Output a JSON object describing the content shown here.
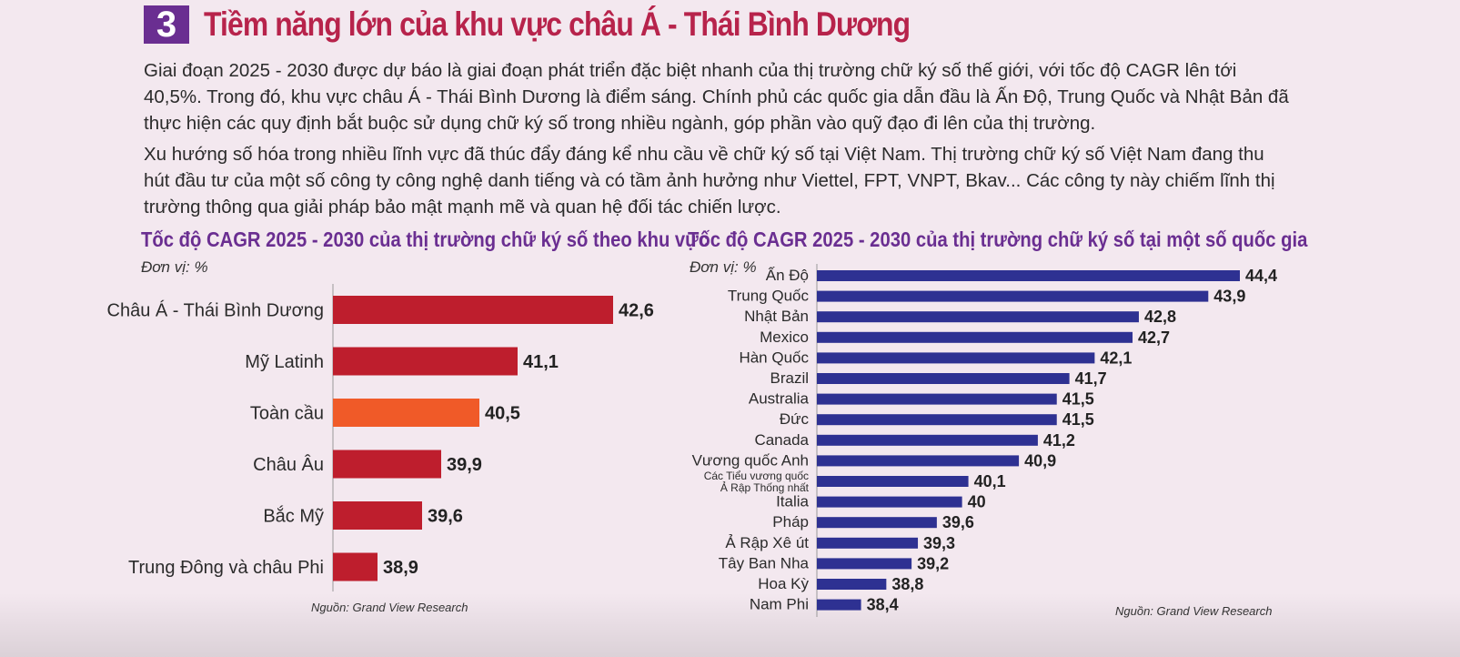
{
  "header": {
    "number": "3",
    "title": "Tiềm năng lớn của khu vực châu Á - Thái Bình Dương"
  },
  "body": {
    "para1": "Giai đoạn 2025 - 2030 được dự báo là giai đoạn phát triển đặc biệt nhanh của thị trường chữ ký số thế giới, với tốc độ CAGR lên tới 40,5%. Trong đó, khu vực châu Á - Thái Bình Dương là điểm sáng. Chính phủ các quốc gia dẫn đầu là Ấn Độ, Trung Quốc và Nhật Bản đã thực hiện các quy định bắt buộc sử dụng chữ ký số trong nhiều ngành, góp phần vào quỹ đạo đi lên của thị trường.",
    "para2": "Xu hướng số hóa trong nhiều lĩnh vực đã thúc đẩy đáng kể nhu cầu về chữ ký số tại Việt Nam. Thị trường chữ ký số Việt Nam đang thu hút đầu tư của một số công ty công nghệ danh tiếng và có tầm ảnh hưởng như Viettel, FPT, VNPT, Bkav... Các công ty này chiếm lĩnh thị trường thông qua giải pháp bảo mật mạnh mẽ và quan hệ đối tác chiến lược."
  },
  "colors": {
    "title": "#b7234b",
    "badge": "#6a2e91",
    "chart_title": "#6a2e91",
    "bar_region": "#be1e2d",
    "bar_highlight": "#f05a28",
    "bar_country": "#2e3192",
    "background": "#f3e8ef"
  },
  "chart_data": [
    {
      "type": "bar",
      "orientation": "horizontal",
      "title": "Tốc độ CAGR 2025 - 2030 của thị trường chữ ký số theo khu vực",
      "unit": "Đơn vị: %",
      "source": "Nguồn: Grand View Research",
      "categories": [
        "Châu Á - Thái Bình Dương",
        "Mỹ Latinh",
        "Toàn cầu",
        "Châu Âu",
        "Bắc Mỹ",
        "Trung Đông và châu Phi"
      ],
      "values": [
        42.6,
        41.1,
        40.5,
        39.9,
        39.6,
        38.9
      ],
      "value_labels": [
        "42,6",
        "41,1",
        "40,5",
        "39,9",
        "39,6",
        "38,9"
      ],
      "highlight": "Toàn cầu",
      "xlim": [
        38.2,
        42.6
      ]
    },
    {
      "type": "bar",
      "orientation": "horizontal",
      "title": "Tốc độ CAGR 2025 - 2030 của thị trường chữ ký số tại một số quốc gia",
      "unit": "Đơn vị: %",
      "source": "Nguồn: Grand View Research",
      "categories": [
        "Ấn Độ",
        "Trung Quốc",
        "Nhật Bản",
        "Mexico",
        "Hàn Quốc",
        "Brazil",
        "Australia",
        "Đức",
        "Canada",
        "Vương quốc Anh",
        "Các Tiểu vương quốc|Ả Rập Thống  nhất",
        "Italia",
        "Pháp",
        "Ả Rập Xê út",
        "Tây Ban Nha",
        "Hoa Kỳ",
        "Nam Phi"
      ],
      "values": [
        44.4,
        43.9,
        42.8,
        42.7,
        42.1,
        41.7,
        41.5,
        41.5,
        41.2,
        40.9,
        40.1,
        40,
        39.6,
        39.3,
        39.2,
        38.8,
        38.4
      ],
      "value_labels": [
        "44,4",
        "43,9",
        "42,8",
        "42,7",
        "42,1",
        "41,7",
        "41,5",
        "41,5",
        "41,2",
        "40,9",
        "40,1",
        "40",
        "39,6",
        "39,3",
        "39,2",
        "38,8",
        "38,4"
      ],
      "xlim": [
        37.7,
        44.4
      ]
    }
  ]
}
